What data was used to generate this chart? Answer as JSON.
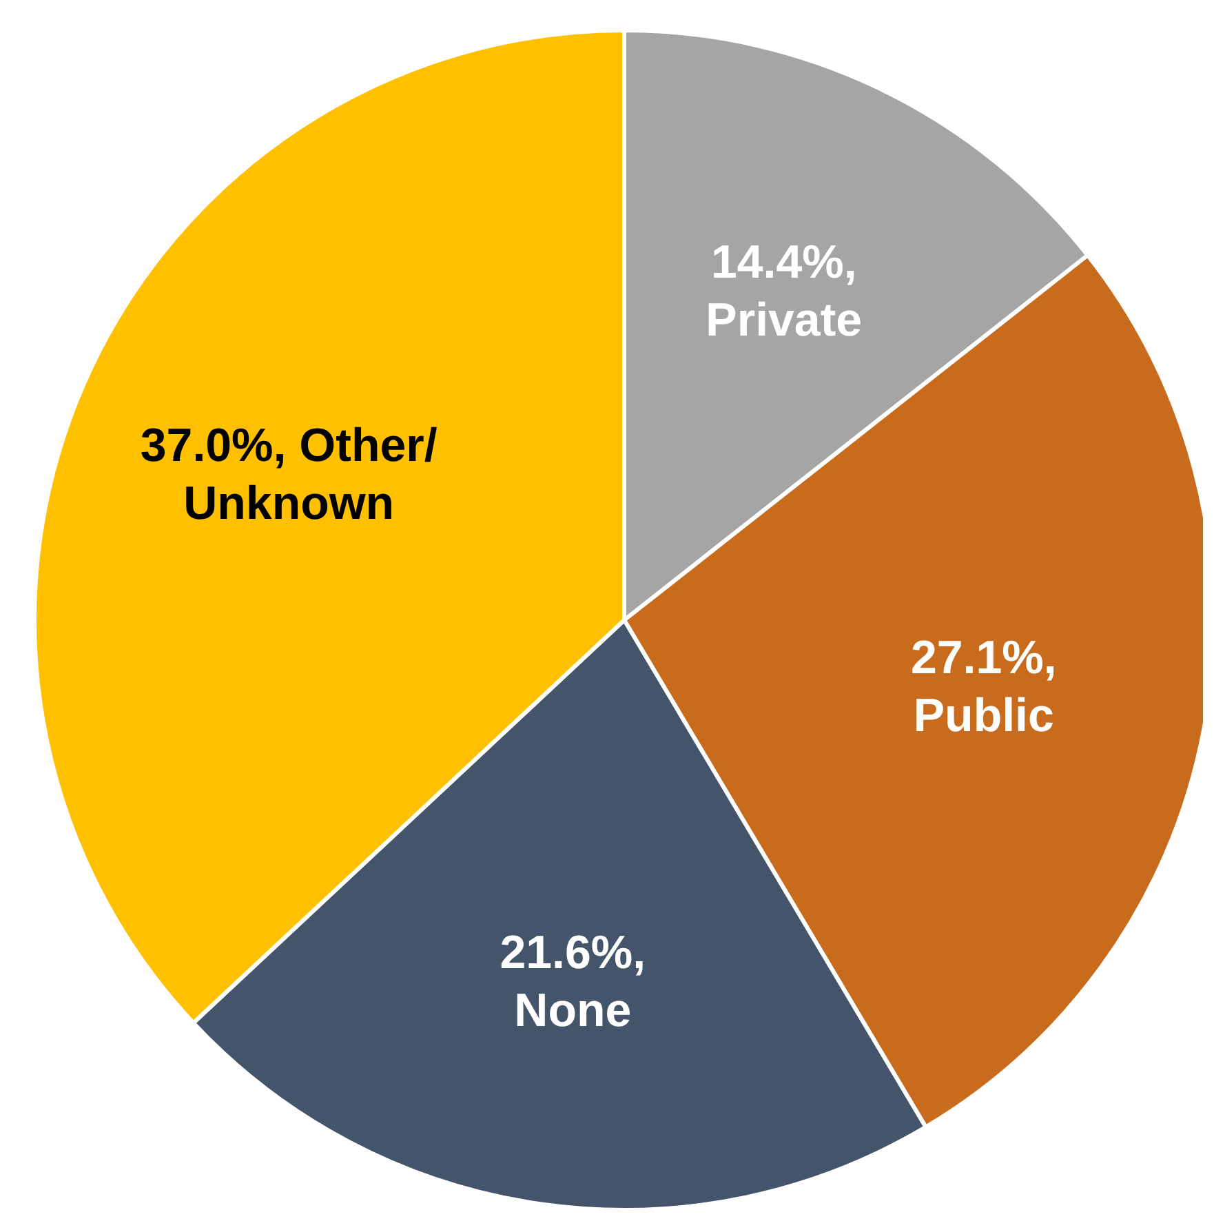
{
  "chart_data": {
    "type": "pie",
    "categories": [
      "Private",
      "Public",
      "None",
      "Other/Unknown"
    ],
    "values": [
      14.4,
      27.1,
      21.6,
      37.0
    ],
    "colors": [
      "#a5a5a5",
      "#c96b1d",
      "#44546a",
      "#ffc000"
    ],
    "value_labels": [
      "14.4%,",
      "27.1%,",
      "21.6%,",
      "37.0%,"
    ],
    "legend": false
  }
}
